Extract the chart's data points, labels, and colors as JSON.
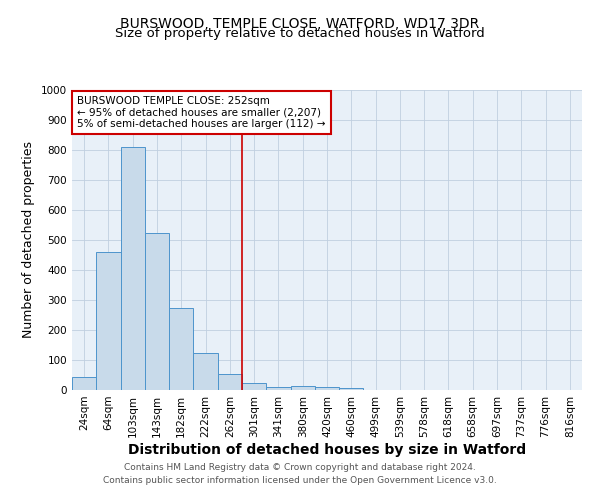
{
  "title": "BURSWOOD, TEMPLE CLOSE, WATFORD, WD17 3DR",
  "subtitle": "Size of property relative to detached houses in Watford",
  "xlabel": "Distribution of detached houses by size in Watford",
  "ylabel": "Number of detached properties",
  "bin_labels": [
    "24sqm",
    "64sqm",
    "103sqm",
    "143sqm",
    "182sqm",
    "222sqm",
    "262sqm",
    "301sqm",
    "341sqm",
    "380sqm",
    "420sqm",
    "460sqm",
    "499sqm",
    "539sqm",
    "578sqm",
    "618sqm",
    "658sqm",
    "697sqm",
    "737sqm",
    "776sqm",
    "816sqm"
  ],
  "bar_values": [
    45,
    460,
    810,
    525,
    275,
    125,
    55,
    25,
    10,
    12,
    10,
    8,
    0,
    0,
    0,
    0,
    0,
    0,
    0,
    0,
    0
  ],
  "bar_color": "#c8daea",
  "bar_edge_color": "#4d94cc",
  "highlight_bar_index": 6,
  "highlight_line_color": "#cc0000",
  "annotation_text": "BURSWOOD TEMPLE CLOSE: 252sqm\n← 95% of detached houses are smaller (2,207)\n5% of semi-detached houses are larger (112) →",
  "annotation_box_color": "#ffffff",
  "annotation_box_edge_color": "#cc0000",
  "ylim": [
    0,
    1000
  ],
  "yticks": [
    0,
    100,
    200,
    300,
    400,
    500,
    600,
    700,
    800,
    900,
    1000
  ],
  "footnote_line1": "Contains HM Land Registry data © Crown copyright and database right 2024.",
  "footnote_line2": "Contains public sector information licensed under the Open Government Licence v3.0.",
  "bg_color": "#ffffff",
  "plot_bg_color": "#e8f0f8",
  "grid_color": "#c0cfe0",
  "title_fontsize": 10,
  "subtitle_fontsize": 9.5,
  "axis_label_fontsize": 9,
  "tick_fontsize": 7.5,
  "annotation_fontsize": 7.5,
  "footnote_fontsize": 6.5
}
